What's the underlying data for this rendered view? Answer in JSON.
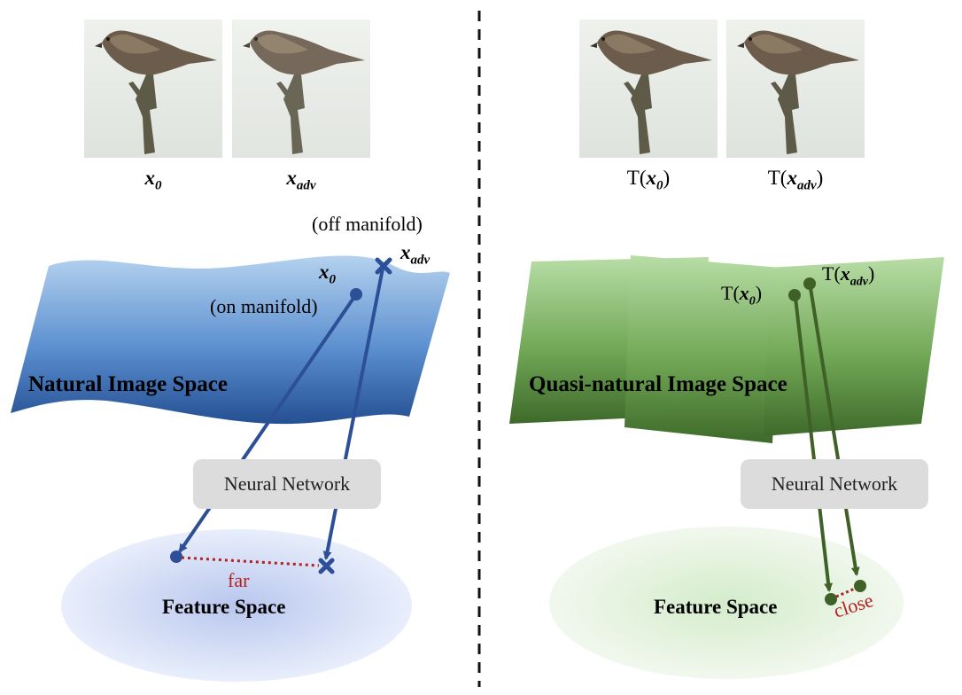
{
  "left_panel": {
    "caption_x0_base": "x",
    "caption_x0_sub": "0",
    "caption_xadv_base": "x",
    "caption_xadv_sub": "adv",
    "off_manifold": "(off manifold)",
    "on_manifold": "(on manifold)",
    "label_x0_base": "x",
    "label_x0_sub": "0",
    "label_xadv_base": "x",
    "label_xadv_sub": "adv",
    "space_label": "Natural Image Space",
    "network_label": "Neural Network",
    "feature_label": "Feature Space",
    "distance_label": "far"
  },
  "right_panel": {
    "caption_tx0_pre": "T(",
    "caption_tx0_base": "x",
    "caption_tx0_sub": "0",
    "caption_tx0_post": ")",
    "caption_txadv_pre": "T(",
    "caption_txadv_base": "x",
    "caption_txadv_sub": "adv",
    "caption_txadv_post": ")",
    "label_tx0_pre": "T(",
    "label_tx0_base": "x",
    "label_tx0_sub": "0",
    "label_tx0_post": ")",
    "label_txadv_pre": "T(",
    "label_txadv_base": "x",
    "label_txadv_sub": "adv",
    "label_txadv_post": ")",
    "space_label": "Quasi-natural Image Space",
    "network_label": "Neural Network",
    "feature_label": "Feature Space",
    "distance_label": "close"
  },
  "colors": {
    "blue_light": "#a8c8ea",
    "blue_dark": "#2d5ea6",
    "green_light": "#a9d596",
    "green_dark": "#4c7d33",
    "arrow_blue": "#2c4f97",
    "arrow_green": "#3f6127",
    "distance_red": "#b22222"
  }
}
